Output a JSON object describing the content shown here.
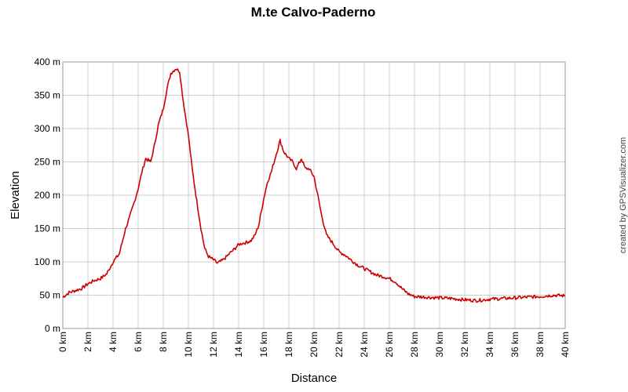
{
  "chart_data": {
    "type": "line",
    "title": "M.te Calvo-Paderno",
    "xlabel": "Distance",
    "ylabel": "Elevation",
    "xlim": [
      0,
      40
    ],
    "ylim": [
      0,
      400
    ],
    "grid": true,
    "x_ticks": [
      "0 km",
      "2 km",
      "4 km",
      "6 km",
      "8 km",
      "10 km",
      "12 km",
      "14 km",
      "16 km",
      "18 km",
      "20 km",
      "22 km",
      "24 km",
      "26 km",
      "28 km",
      "30 km",
      "32 km",
      "34 km",
      "36 km",
      "38 km",
      "40 km"
    ],
    "y_ticks": [
      "0 m",
      "50 m",
      "100 m",
      "150 m",
      "200 m",
      "250 m",
      "300 m",
      "350 m",
      "400 m"
    ],
    "line_color": "#cc0000",
    "series": [
      {
        "x": [
          0,
          0.5,
          1,
          1.5,
          2,
          2.5,
          3,
          3.5,
          4,
          4.5,
          5,
          5.3,
          5.7,
          6,
          6.3,
          6.6,
          7,
          7.3,
          7.6,
          8,
          8.3,
          8.6,
          9,
          9.3,
          9.6,
          10,
          10.3,
          10.6,
          11,
          11.3,
          11.6,
          12,
          12.3,
          12.7,
          13,
          13.3,
          13.6,
          14,
          14.3,
          14.6,
          15,
          15.3,
          15.6,
          16,
          16.3,
          16.6,
          17,
          17.3,
          17.6,
          18,
          18.3,
          18.6,
          19,
          19.3,
          19.6,
          20,
          20.3,
          20.6,
          21,
          21.5,
          22,
          22.5,
          23,
          23.5,
          24,
          24.5,
          25,
          25.5,
          26,
          26.5,
          27,
          27.5,
          28,
          29,
          30,
          31,
          32,
          33,
          34,
          35,
          36,
          37,
          38,
          39,
          40
        ],
        "y": [
          47,
          54,
          57,
          60,
          67,
          72,
          75,
          82,
          100,
          112,
          150,
          166,
          190,
          210,
          235,
          255,
          250,
          275,
          305,
          330,
          360,
          383,
          390,
          386,
          340,
          290,
          240,
          200,
          150,
          120,
          108,
          103,
          98,
          102,
          107,
          113,
          118,
          126,
          128,
          129,
          132,
          140,
          155,
          195,
          220,
          235,
          262,
          282,
          265,
          255,
          250,
          240,
          255,
          240,
          240,
          228,
          200,
          170,
          140,
          128,
          115,
          110,
          102,
          95,
          90,
          85,
          80,
          78,
          75,
          70,
          60,
          52,
          48,
          47,
          46,
          45,
          43,
          42,
          44,
          45,
          46,
          47,
          48,
          50,
          49
        ]
      }
    ]
  },
  "credit": "created by GPSVisualizer.com"
}
